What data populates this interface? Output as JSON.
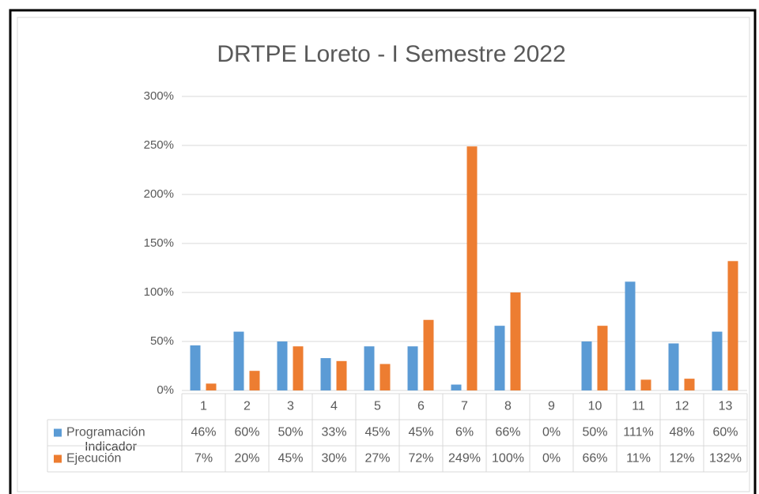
{
  "chart_data": {
    "type": "bar",
    "title": "DRTPE Loreto - I Semestre 2022",
    "x_label": "Indicador",
    "categories": [
      "1",
      "2",
      "3",
      "4",
      "5",
      "6",
      "7",
      "8",
      "9",
      "10",
      "11",
      "12",
      "13"
    ],
    "series": [
      {
        "name": "Programación",
        "color": "#5b9bd5",
        "values": [
          46,
          60,
          50,
          33,
          45,
          45,
          6,
          66,
          0,
          50,
          111,
          48,
          60
        ],
        "value_labels": [
          "46%",
          "60%",
          "50%",
          "33%",
          "45%",
          "45%",
          "6%",
          "66%",
          "0%",
          "50%",
          "111%",
          "48%",
          "60%"
        ]
      },
      {
        "name": "Ejecución",
        "color": "#ed7d31",
        "values": [
          7,
          20,
          45,
          30,
          27,
          72,
          249,
          100,
          0,
          66,
          11,
          12,
          132
        ],
        "value_labels": [
          "7%",
          "20%",
          "45%",
          "30%",
          "27%",
          "72%",
          "249%",
          "100%",
          "0%",
          "66%",
          "11%",
          "12%",
          "132%"
        ]
      }
    ],
    "ylim": [
      0,
      300
    ],
    "yticks": [
      {
        "value": 0,
        "label": "0%"
      },
      {
        "value": 50,
        "label": "50%"
      },
      {
        "value": 100,
        "label": "100%"
      },
      {
        "value": 150,
        "label": "150%"
      },
      {
        "value": 200,
        "label": "200%"
      },
      {
        "value": 250,
        "label": "250%"
      },
      {
        "value": 300,
        "label": "300%"
      }
    ],
    "grid": true
  }
}
